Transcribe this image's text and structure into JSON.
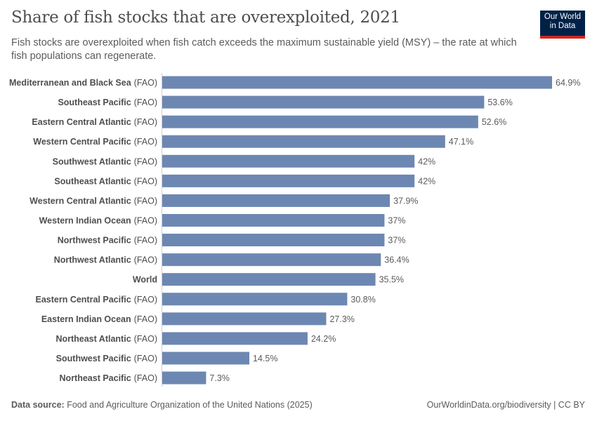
{
  "header": {
    "title": "Share of fish stocks that are overexploited, 2021",
    "subtitle": "Fish stocks are overexploited when fish catch exceeds the maximum sustainable yield (MSY) – the rate at which fish populations can regenerate.",
    "logo_text": "Our World in Data"
  },
  "chart_data": {
    "type": "bar",
    "orientation": "horizontal",
    "title": "Share of fish stocks that are overexploited, 2021",
    "value_unit": "%",
    "bar_color": "#6d87b3",
    "xlim": [
      0,
      64.9
    ],
    "grid": false,
    "categories": [
      {
        "name": "Mediterranean and Black Sea",
        "suffix": "(FAO)",
        "value": 64.9,
        "label": "64.9%"
      },
      {
        "name": "Southeast Pacific",
        "suffix": "(FAO)",
        "value": 53.6,
        "label": "53.6%"
      },
      {
        "name": "Eastern Central Atlantic",
        "suffix": "(FAO)",
        "value": 52.6,
        "label": "52.6%"
      },
      {
        "name": "Western Central Pacific",
        "suffix": "(FAO)",
        "value": 47.1,
        "label": "47.1%"
      },
      {
        "name": "Southwest Atlantic",
        "suffix": "(FAO)",
        "value": 42,
        "label": "42%"
      },
      {
        "name": "Southeast Atlantic",
        "suffix": "(FAO)",
        "value": 42,
        "label": "42%"
      },
      {
        "name": "Western Central Atlantic",
        "suffix": "(FAO)",
        "value": 37.9,
        "label": "37.9%"
      },
      {
        "name": "Western Indian Ocean",
        "suffix": "(FAO)",
        "value": 37,
        "label": "37%"
      },
      {
        "name": "Northwest Pacific",
        "suffix": "(FAO)",
        "value": 37,
        "label": "37%"
      },
      {
        "name": "Northwest Atlantic",
        "suffix": "(FAO)",
        "value": 36.4,
        "label": "36.4%"
      },
      {
        "name": "World",
        "suffix": "",
        "value": 35.5,
        "label": "35.5%"
      },
      {
        "name": "Eastern Central Pacific",
        "suffix": "(FAO)",
        "value": 30.8,
        "label": "30.8%"
      },
      {
        "name": "Eastern Indian Ocean",
        "suffix": "(FAO)",
        "value": 27.3,
        "label": "27.3%"
      },
      {
        "name": "Northeast Atlantic",
        "suffix": "(FAO)",
        "value": 24.2,
        "label": "24.2%"
      },
      {
        "name": "Southwest Pacific",
        "suffix": "(FAO)",
        "value": 14.5,
        "label": "14.5%"
      },
      {
        "name": "Northeast Pacific",
        "suffix": "(FAO)",
        "value": 7.3,
        "label": "7.3%"
      }
    ]
  },
  "footer": {
    "source_label": "Data source:",
    "source_text": "Food and Agriculture Organization of the United Nations (2025)",
    "credit": "OurWorldinData.org/biodiversity | CC BY"
  }
}
